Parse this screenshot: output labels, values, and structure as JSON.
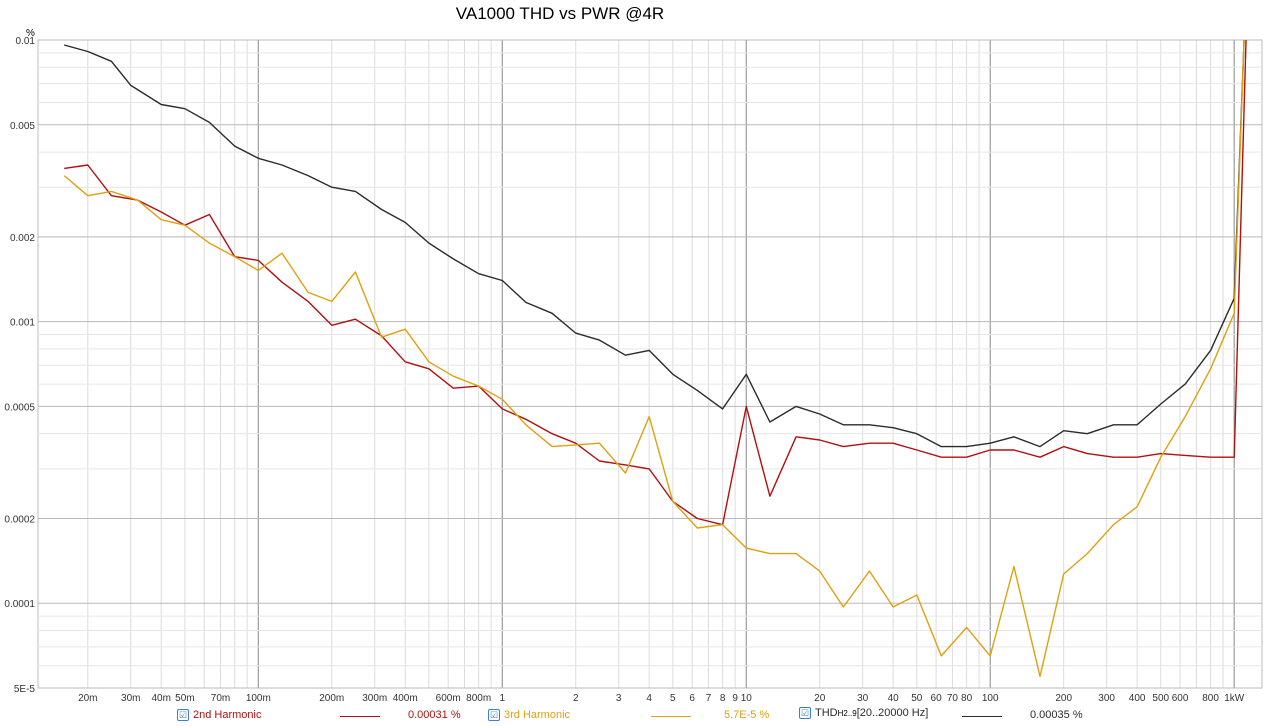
{
  "chart_data": {
    "type": "line",
    "title": "VA1000 THD vs PWR @4R",
    "xscale": "log",
    "yscale": "log",
    "xlim": [
      0.0125,
      1300
    ],
    "ylim": [
      5e-05,
      0.01
    ],
    "ylabel": "%",
    "grid": true,
    "legend_position": "bottom",
    "x_ticks": [
      {
        "v": 0.02,
        "t": "20m"
      },
      {
        "v": 0.03,
        "t": "30m"
      },
      {
        "v": 0.04,
        "t": "40m"
      },
      {
        "v": 0.05,
        "t": "50m"
      },
      {
        "v": 0.07,
        "t": "70m"
      },
      {
        "v": 0.1,
        "t": "100m"
      },
      {
        "v": 0.2,
        "t": "200m"
      },
      {
        "v": 0.3,
        "t": "300m"
      },
      {
        "v": 0.4,
        "t": "400m"
      },
      {
        "v": 0.6,
        "t": "600m"
      },
      {
        "v": 0.8,
        "t": "800m"
      },
      {
        "v": 1,
        "t": "1"
      },
      {
        "v": 2,
        "t": "2"
      },
      {
        "v": 3,
        "t": "3"
      },
      {
        "v": 4,
        "t": "4"
      },
      {
        "v": 5,
        "t": "5"
      },
      {
        "v": 6,
        "t": "6"
      },
      {
        "v": 7,
        "t": "7"
      },
      {
        "v": 8,
        "t": "8"
      },
      {
        "v": 9,
        "t": "9"
      },
      {
        "v": 10,
        "t": "10"
      },
      {
        "v": 20,
        "t": "20"
      },
      {
        "v": 30,
        "t": "30"
      },
      {
        "v": 40,
        "t": "40"
      },
      {
        "v": 50,
        "t": "50"
      },
      {
        "v": 60,
        "t": "60"
      },
      {
        "v": 70,
        "t": "70"
      },
      {
        "v": 80,
        "t": "80"
      },
      {
        "v": 100,
        "t": "100"
      },
      {
        "v": 200,
        "t": "200"
      },
      {
        "v": 300,
        "t": "300"
      },
      {
        "v": 400,
        "t": "400"
      },
      {
        "v": 500,
        "t": "500"
      },
      {
        "v": 600,
        "t": "600"
      },
      {
        "v": 800,
        "t": "800"
      },
      {
        "v": 1000,
        "t": "1kW"
      }
    ],
    "y_ticks": [
      {
        "v": 0.01,
        "t": "0.01"
      },
      {
        "v": 0.005,
        "t": "0.005"
      },
      {
        "v": 0.002,
        "t": "0.002"
      },
      {
        "v": 0.001,
        "t": "0.001"
      },
      {
        "v": 0.0005,
        "t": "0.0005"
      },
      {
        "v": 0.0002,
        "t": "0.0002"
      },
      {
        "v": 0.0001,
        "t": "0.0001"
      },
      {
        "v": 5e-05,
        "t": "5E-5"
      }
    ],
    "series": [
      {
        "name": "THD",
        "color": "#2b2b2b",
        "points": [
          [
            0.016,
            0.0096
          ],
          [
            0.02,
            0.0091
          ],
          [
            0.025,
            0.0084
          ],
          [
            0.03,
            0.0069
          ],
          [
            0.04,
            0.0059
          ],
          [
            0.05,
            0.0057
          ],
          [
            0.063,
            0.0051
          ],
          [
            0.08,
            0.0042
          ],
          [
            0.1,
            0.0038
          ],
          [
            0.125,
            0.0036
          ],
          [
            0.16,
            0.0033
          ],
          [
            0.2,
            0.003
          ],
          [
            0.25,
            0.0029
          ],
          [
            0.32,
            0.0025
          ],
          [
            0.4,
            0.00225
          ],
          [
            0.5,
            0.0019
          ],
          [
            0.63,
            0.00167
          ],
          [
            0.8,
            0.00148
          ],
          [
            1.0,
            0.0014
          ],
          [
            1.25,
            0.00117
          ],
          [
            1.6,
            0.00107
          ],
          [
            2.0,
            0.00091
          ],
          [
            2.5,
            0.00086
          ],
          [
            3.2,
            0.00076
          ],
          [
            4.0,
            0.00079
          ],
          [
            5.0,
            0.00065
          ],
          [
            6.3,
            0.00057
          ],
          [
            8.0,
            0.00049
          ],
          [
            10,
            0.00065
          ],
          [
            12.5,
            0.00044
          ],
          [
            16,
            0.0005
          ],
          [
            20,
            0.00047
          ],
          [
            25,
            0.00043
          ],
          [
            32,
            0.00043
          ],
          [
            40,
            0.00042
          ],
          [
            50,
            0.0004
          ],
          [
            63,
            0.00036
          ],
          [
            80,
            0.00036
          ],
          [
            100,
            0.00037
          ],
          [
            125,
            0.00039
          ],
          [
            160,
            0.00036
          ],
          [
            200,
            0.00041
          ],
          [
            250,
            0.0004
          ],
          [
            320,
            0.00043
          ],
          [
            400,
            0.00043
          ],
          [
            500,
            0.00051
          ],
          [
            630,
            0.0006
          ],
          [
            800,
            0.00079
          ],
          [
            1000,
            0.00121
          ],
          [
            1100,
            0.0105
          ]
        ]
      },
      {
        "name": "2nd Harmonic",
        "color": "#b01010",
        "points": [
          [
            0.016,
            0.0035
          ],
          [
            0.02,
            0.0036
          ],
          [
            0.025,
            0.0028
          ],
          [
            0.032,
            0.0027
          ],
          [
            0.04,
            0.00245
          ],
          [
            0.05,
            0.0022
          ],
          [
            0.063,
            0.0024
          ],
          [
            0.08,
            0.0017
          ],
          [
            0.1,
            0.00165
          ],
          [
            0.125,
            0.00138
          ],
          [
            0.16,
            0.00118
          ],
          [
            0.2,
            0.00097
          ],
          [
            0.25,
            0.00102
          ],
          [
            0.32,
            0.00089
          ],
          [
            0.4,
            0.00072
          ],
          [
            0.5,
            0.00068
          ],
          [
            0.63,
            0.00058
          ],
          [
            0.8,
            0.00059
          ],
          [
            1.0,
            0.00049
          ],
          [
            1.25,
            0.00045
          ],
          [
            1.6,
            0.0004
          ],
          [
            2.0,
            0.00037
          ],
          [
            2.5,
            0.00032
          ],
          [
            3.2,
            0.00031
          ],
          [
            4.0,
            0.0003
          ],
          [
            5.0,
            0.00023
          ],
          [
            6.3,
            0.0002
          ],
          [
            8.0,
            0.00019
          ],
          [
            10,
            0.0005
          ],
          [
            12.5,
            0.00024
          ],
          [
            16,
            0.00039
          ],
          [
            20,
            0.00038
          ],
          [
            25,
            0.00036
          ],
          [
            32,
            0.00037
          ],
          [
            40,
            0.00037
          ],
          [
            50,
            0.00035
          ],
          [
            63,
            0.00033
          ],
          [
            80,
            0.00033
          ],
          [
            100,
            0.00035
          ],
          [
            125,
            0.00035
          ],
          [
            160,
            0.00033
          ],
          [
            200,
            0.00036
          ],
          [
            250,
            0.00034
          ],
          [
            320,
            0.00033
          ],
          [
            400,
            0.00033
          ],
          [
            500,
            0.00034
          ],
          [
            630,
            0.000335
          ],
          [
            800,
            0.00033
          ],
          [
            1000,
            0.00033
          ],
          [
            1120,
            0.0105
          ]
        ]
      },
      {
        "name": "3rd Harmonic",
        "color": "#e0a010",
        "points": [
          [
            0.016,
            0.0033
          ],
          [
            0.02,
            0.0028
          ],
          [
            0.025,
            0.0029
          ],
          [
            0.032,
            0.0027
          ],
          [
            0.04,
            0.0023
          ],
          [
            0.05,
            0.0022
          ],
          [
            0.063,
            0.0019
          ],
          [
            0.08,
            0.0017
          ],
          [
            0.1,
            0.00152
          ],
          [
            0.125,
            0.00175
          ],
          [
            0.16,
            0.00127
          ],
          [
            0.2,
            0.00118
          ],
          [
            0.25,
            0.0015
          ],
          [
            0.32,
            0.00088
          ],
          [
            0.4,
            0.00094
          ],
          [
            0.5,
            0.00072
          ],
          [
            0.63,
            0.00064
          ],
          [
            0.8,
            0.00059
          ],
          [
            1.0,
            0.00053
          ],
          [
            1.25,
            0.00043
          ],
          [
            1.6,
            0.00036
          ],
          [
            2.0,
            0.000365
          ],
          [
            2.5,
            0.00037
          ],
          [
            3.2,
            0.00029
          ],
          [
            4.0,
            0.00046
          ],
          [
            5.0,
            0.00023
          ],
          [
            6.3,
            0.000185
          ],
          [
            8.0,
            0.00019
          ],
          [
            10,
            0.000157
          ],
          [
            12.5,
            0.00015
          ],
          [
            16,
            0.00015
          ],
          [
            20,
            0.00013
          ],
          [
            25,
            9.7e-05
          ],
          [
            32,
            0.00013
          ],
          [
            40,
            9.7e-05
          ],
          [
            50,
            0.000107
          ],
          [
            63,
            6.5e-05
          ],
          [
            80,
            8.2e-05
          ],
          [
            100,
            6.5e-05
          ],
          [
            125,
            0.000135
          ],
          [
            160,
            5.5e-05
          ],
          [
            200,
            0.000127
          ],
          [
            250,
            0.00015
          ],
          [
            320,
            0.00019
          ],
          [
            400,
            0.00022
          ],
          [
            500,
            0.00033
          ],
          [
            630,
            0.00046
          ],
          [
            800,
            0.00068
          ],
          [
            1000,
            0.00107
          ],
          [
            1100,
            0.0105
          ]
        ]
      }
    ]
  },
  "legend": [
    {
      "label": "2nd Harmonic",
      "value": "0.00031 %",
      "color": "#b01010",
      "check": "☑"
    },
    {
      "label": "3rd Harmonic",
      "value": "5.7E-5 %",
      "color": "#e0a010",
      "check": "☑"
    },
    {
      "label": "THD",
      "sub": "H2..9",
      "suffix": " [20..20000 Hz]",
      "value": "0.00035 %",
      "color": "#2b2b2b",
      "check": "☑"
    }
  ]
}
